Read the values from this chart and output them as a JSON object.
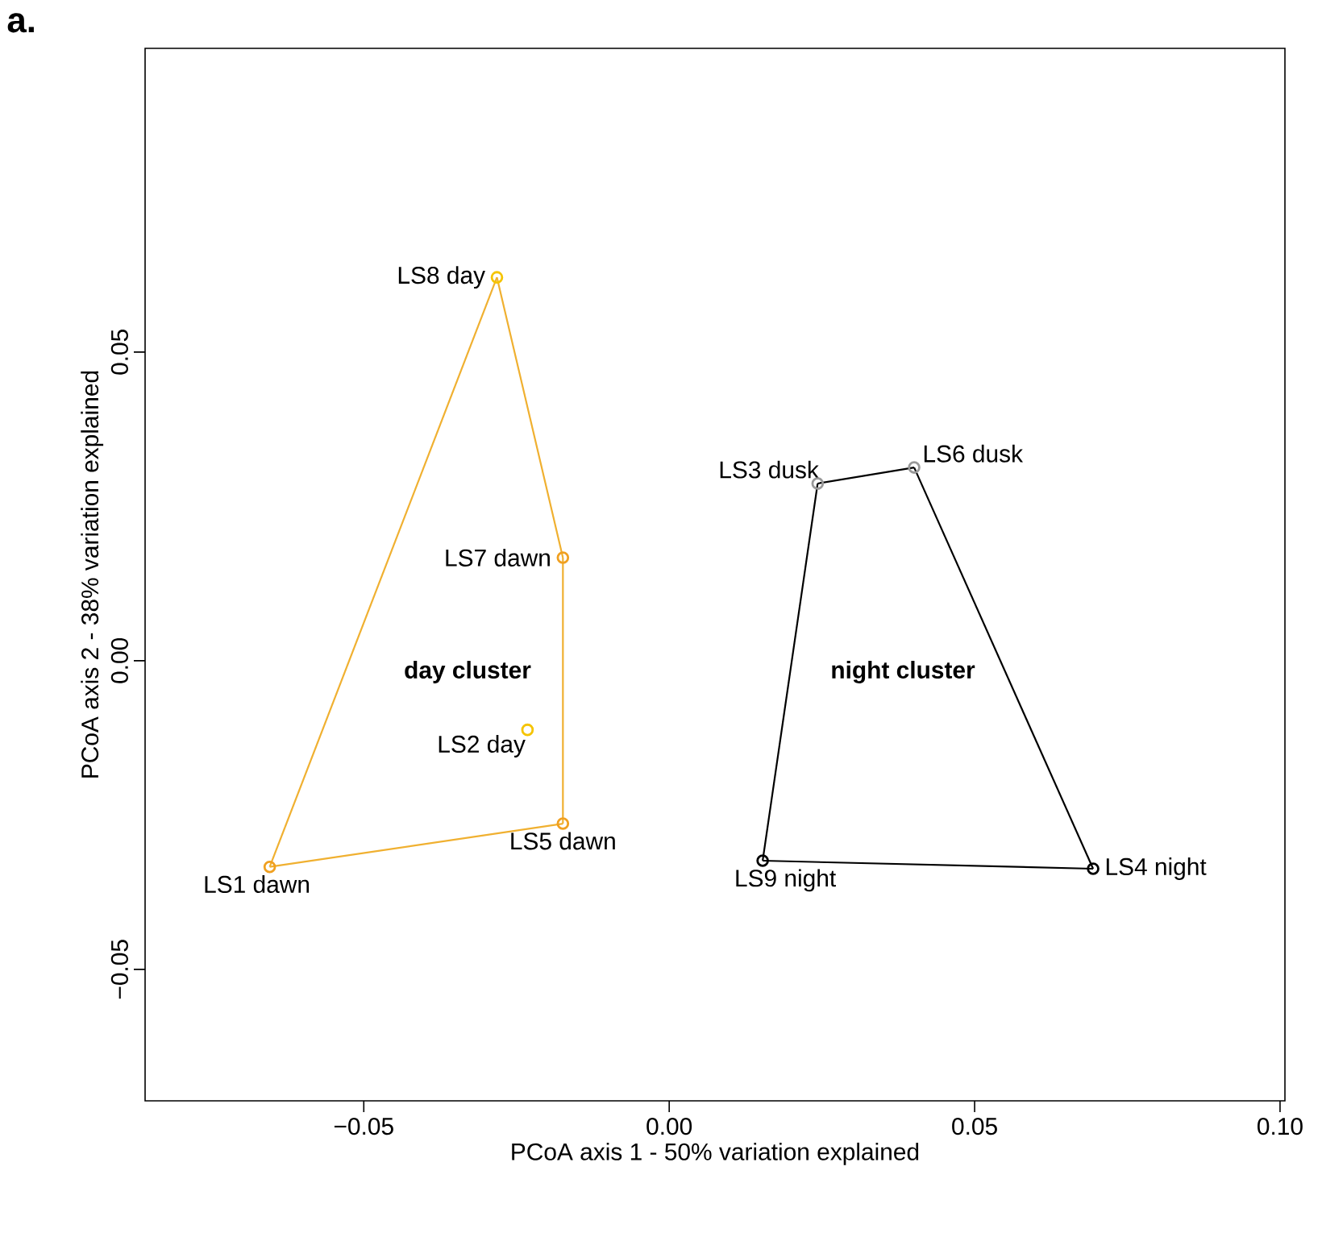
{
  "chart_data": {
    "type": "scatter",
    "xlabel": "PCoA axis 1 - 50% variation explained",
    "ylabel": "PCoA axis 2 - 38% variation explained",
    "xlim": [
      -0.0858,
      0.1008
    ],
    "ylim": [
      -0.0713,
      0.0992
    ],
    "xticks": [
      {
        "value": -0.05,
        "label": "−0.05"
      },
      {
        "value": 0,
        "label": "0.00"
      },
      0.05,
      {
        "value": 0.1,
        "label": "0.10"
      }
    ],
    "yticks": [
      {
        "value": -0.05,
        "label": "−0.05"
      },
      {
        "value": 0,
        "label": "0.00"
      },
      0.05
    ],
    "marker": "circle",
    "grid": false,
    "series": [
      {
        "x": [
          -0.0282,
          -0.0174,
          -0.0232,
          -0.0174,
          -0.0654,
          0.0243,
          0.0401,
          0.0153,
          0.0694
        ],
        "values": [
          0.0621,
          0.0167,
          -0.0112,
          -0.0264,
          -0.0334,
          0.0287,
          0.0313,
          -0.0324,
          -0.0337
        ],
        "colors": [
          "#f5c400",
          "#f0a020",
          "#f5c400",
          "#f0a020",
          "#f0a020",
          "#999999",
          "#999999",
          "#000000",
          "#000000"
        ]
      },
      {
        "type": "line",
        "marker": "none",
        "color": "#f0b030",
        "x": [
          -0.0654,
          -0.0282
        ],
        "values": [
          -0.0334,
          0.0621
        ]
      },
      {
        "type": "line",
        "marker": "none",
        "color": "#f0b030",
        "x": [
          -0.0282,
          -0.0174
        ],
        "values": [
          0.0621,
          0.0167
        ]
      },
      {
        "type": "line",
        "marker": "none",
        "color": "#f0b030",
        "x": [
          -0.0174,
          -0.0174
        ],
        "values": [
          0.0167,
          -0.0264
        ]
      },
      {
        "type": "line",
        "marker": "none",
        "color": "#f0b030",
        "x": [
          -0.0654,
          -0.0174
        ],
        "values": [
          -0.0334,
          -0.0264
        ]
      },
      {
        "type": "line",
        "marker": "none",
        "color": "#000000",
        "x": [
          0.0153,
          0.0243
        ],
        "values": [
          -0.0324,
          0.0287
        ]
      },
      {
        "type": "line",
        "marker": "none",
        "color": "#000000",
        "x": [
          0.0243,
          0.0401
        ],
        "values": [
          0.0287,
          0.0313
        ]
      },
      {
        "type": "line",
        "marker": "none",
        "color": "#000000",
        "x": [
          0.0401,
          0.0694
        ],
        "values": [
          0.0313,
          -0.0337
        ]
      },
      {
        "type": "line",
        "marker": "none",
        "color": "#000000",
        "x": [
          0.0153,
          0.0694
        ],
        "values": [
          -0.0324,
          -0.0337
        ]
      }
    ],
    "annotations": [
      "a.",
      {
        "text": "LS8 day",
        "x": -0.0282,
        "y": 0.0621
      },
      {
        "text": "LS7 dawn",
        "x": -0.0174,
        "y": 0.0167
      },
      {
        "text": "LS2 day",
        "x": -0.0232,
        "y": -0.0112
      },
      {
        "text": "LS5 dawn",
        "x": -0.0174,
        "y": -0.0264
      },
      {
        "text": "LS1 dawn",
        "x": -0.0654,
        "y": -0.0334
      },
      {
        "text": "LS3 dusk",
        "x": 0.0243,
        "y": 0.0287
      },
      {
        "text": "LS6 dusk",
        "x": 0.0401,
        "y": 0.0313
      },
      {
        "text": "LS9 night",
        "x": 0.0153,
        "y": -0.0324
      },
      {
        "text": "LS4 night",
        "x": 0.0694,
        "y": -0.0337
      },
      "day cluster",
      "night cluster"
    ]
  }
}
